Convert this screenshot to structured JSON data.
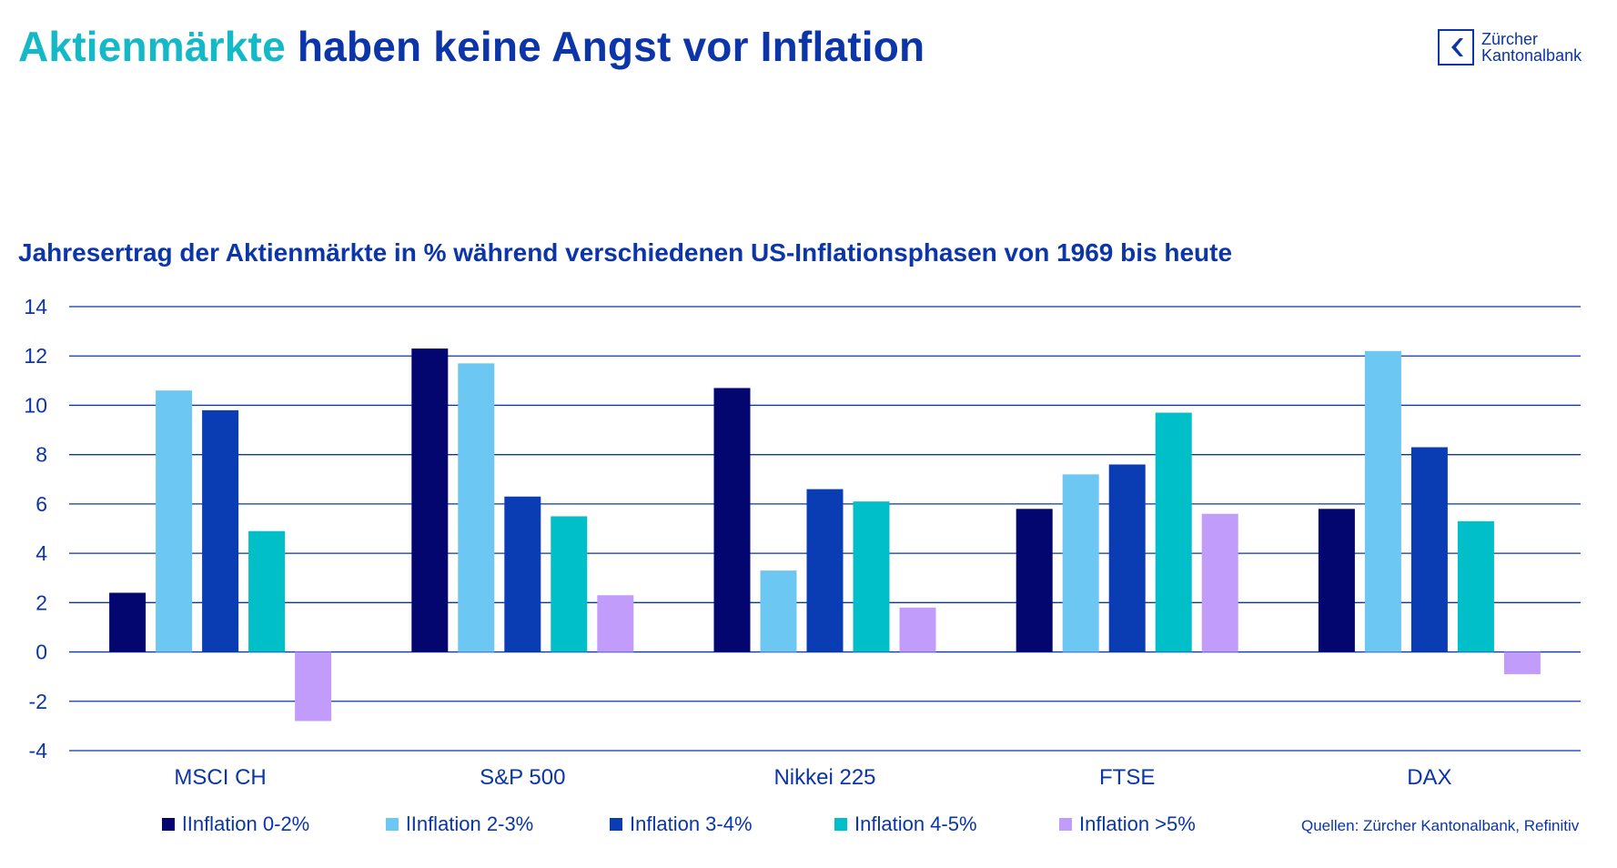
{
  "header": {
    "title_accent": "Aktienmärkte",
    "title_rest": "haben keine Angst vor Inflation"
  },
  "logo": {
    "line1": "Zürcher",
    "line2": "Kantonalbank",
    "icon": "zkb-logo-icon"
  },
  "source": "Quellen: Zürcher Kantonalbank, Refinitiv",
  "colors": {
    "accent": "#14B9C7",
    "brand": "#0B35A8",
    "grid": "#0B35A8"
  },
  "chart_data": {
    "type": "bar",
    "title": "Jahresertrag der Aktienmärkte in % während verschiedenen US-Inflationsphasen von 1969 bis heute",
    "xlabel": "",
    "ylabel": "",
    "ylim": [
      -4,
      14
    ],
    "yticks": [
      14,
      12,
      10,
      8,
      6,
      4,
      2,
      0,
      -2,
      -4
    ],
    "grid": true,
    "legend_position": "bottom",
    "categories": [
      "MSCI CH",
      "S&P 500",
      "Nikkei 225",
      "FTSE",
      "DAX"
    ],
    "series": [
      {
        "name": "Inflation 0-2%",
        "legend_label": "ǀInflation 0-2%",
        "color": "#03066E",
        "values": [
          2.4,
          12.3,
          10.7,
          5.8,
          5.8
        ]
      },
      {
        "name": "Inflation 2-3%",
        "legend_label": "ǀInflation 2-3%",
        "color": "#6CC8F3",
        "values": [
          10.6,
          11.7,
          3.3,
          7.2,
          12.2
        ]
      },
      {
        "name": "Inflation 3-4%",
        "legend_label": "Inflation 3-4%",
        "color": "#0A3CB4",
        "values": [
          9.8,
          6.3,
          6.6,
          7.6,
          8.3
        ]
      },
      {
        "name": "Inflation 4-5%",
        "legend_label": "Inflation 4-5%",
        "color": "#00BFC8",
        "values": [
          4.9,
          5.5,
          6.1,
          9.7,
          5.3
        ]
      },
      {
        "name": "Inflation >5%",
        "legend_label": "Inflation >5%",
        "color": "#C29CFA",
        "values": [
          -2.8,
          2.3,
          1.8,
          5.6,
          -0.9
        ]
      }
    ]
  }
}
